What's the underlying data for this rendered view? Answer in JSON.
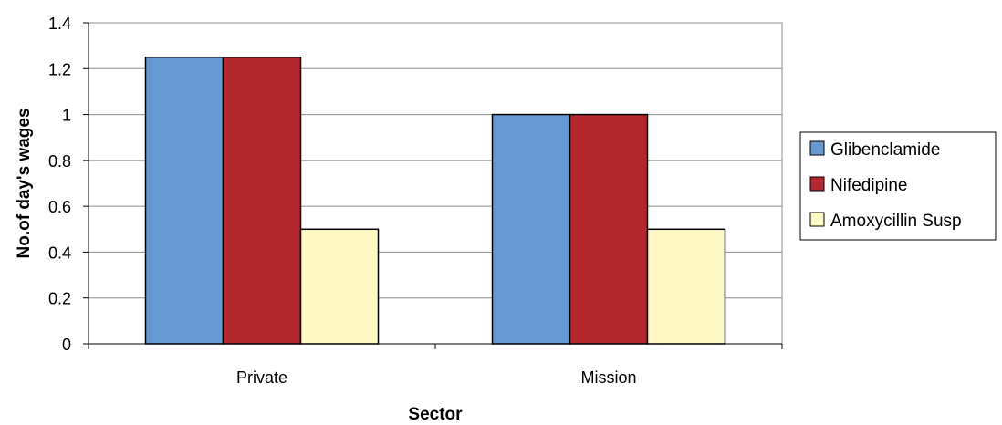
{
  "chart_data": {
    "type": "bar",
    "categories": [
      "Private",
      "Mission"
    ],
    "series": [
      {
        "name": "Glibenclamide",
        "values": [
          1.25,
          1.0
        ],
        "color": "#6699d1"
      },
      {
        "name": "Nifedipine",
        "values": [
          1.25,
          1.0
        ],
        "color": "#b5272e"
      },
      {
        "name": "Amoxycillin Susp",
        "values": [
          0.5,
          0.5
        ],
        "color": "#fef8c4"
      }
    ],
    "xlabel": "Sector",
    "ylabel": "No.of day's wages",
    "ylim": [
      0,
      1.4
    ],
    "yticks": [
      "0",
      "0.2",
      "0.4",
      "0.6",
      "0.8",
      "1",
      "1.2",
      "1.4"
    ],
    "grid": true,
    "legend": "right"
  }
}
